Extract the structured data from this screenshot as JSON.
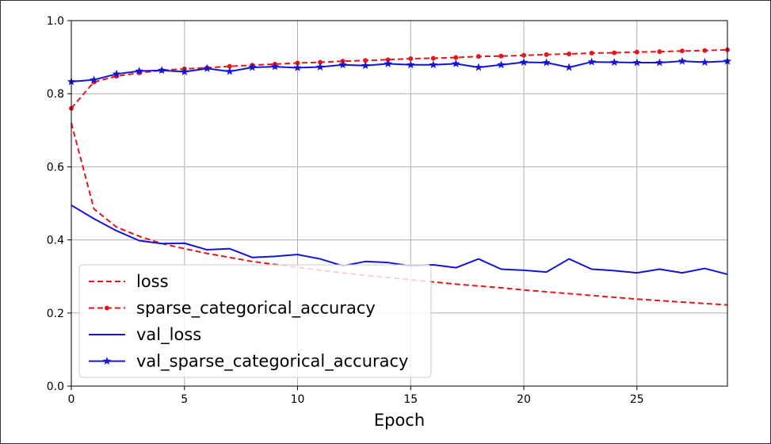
{
  "chart_data": {
    "type": "line",
    "title": "",
    "xlabel": "Epoch",
    "ylabel": "",
    "xlim": [
      0,
      29
    ],
    "ylim": [
      0.0,
      1.0
    ],
    "x_ticks": [
      0,
      5,
      10,
      15,
      20,
      25
    ],
    "y_ticks": [
      0.0,
      0.2,
      0.4,
      0.6,
      0.8,
      1.0
    ],
    "x_tick_labels": [
      "0",
      "5",
      "10",
      "15",
      "20",
      "25"
    ],
    "y_tick_labels": [
      "0.0",
      "0.2",
      "0.4",
      "0.6",
      "0.8",
      "1.0"
    ],
    "grid": true,
    "legend_position": "lower-left",
    "x": [
      0,
      1,
      2,
      3,
      4,
      5,
      6,
      7,
      8,
      9,
      10,
      11,
      12,
      13,
      14,
      15,
      16,
      17,
      18,
      19,
      20,
      21,
      22,
      23,
      24,
      25,
      26,
      27,
      28,
      29
    ],
    "series": [
      {
        "name": "loss",
        "color": "#e8151b",
        "style": "dashed",
        "marker": "none",
        "values": [
          0.72,
          0.485,
          0.435,
          0.41,
          0.39,
          0.376,
          0.363,
          0.352,
          0.341,
          0.333,
          0.325,
          0.317,
          0.31,
          0.303,
          0.297,
          0.291,
          0.285,
          0.279,
          0.274,
          0.269,
          0.263,
          0.258,
          0.253,
          0.248,
          0.243,
          0.238,
          0.234,
          0.23,
          0.226,
          0.222
        ]
      },
      {
        "name": "sparse_categorical_accuracy",
        "color": "#e8151b",
        "style": "dashed",
        "marker": "dot",
        "values": [
          0.76,
          0.832,
          0.848,
          0.857,
          0.864,
          0.868,
          0.871,
          0.875,
          0.878,
          0.881,
          0.884,
          0.886,
          0.889,
          0.891,
          0.893,
          0.896,
          0.897,
          0.899,
          0.902,
          0.903,
          0.905,
          0.907,
          0.909,
          0.911,
          0.912,
          0.914,
          0.915,
          0.917,
          0.918,
          0.92
        ]
      },
      {
        "name": "val_loss",
        "color": "#1414d6",
        "style": "solid",
        "marker": "none",
        "values": [
          0.495,
          0.458,
          0.425,
          0.398,
          0.39,
          0.391,
          0.373,
          0.376,
          0.352,
          0.355,
          0.36,
          0.348,
          0.329,
          0.341,
          0.338,
          0.329,
          0.332,
          0.324,
          0.348,
          0.32,
          0.317,
          0.312,
          0.348,
          0.32,
          0.316,
          0.31,
          0.32,
          0.31,
          0.322,
          0.306
        ]
      },
      {
        "name": "val_sparse_categorical_accuracy",
        "color": "#1414d6",
        "style": "solid",
        "marker": "star",
        "values": [
          0.833,
          0.838,
          0.854,
          0.862,
          0.864,
          0.86,
          0.869,
          0.861,
          0.872,
          0.874,
          0.871,
          0.873,
          0.879,
          0.877,
          0.882,
          0.879,
          0.879,
          0.882,
          0.872,
          0.879,
          0.886,
          0.885,
          0.872,
          0.887,
          0.886,
          0.885,
          0.885,
          0.889,
          0.886,
          0.889
        ]
      }
    ]
  }
}
